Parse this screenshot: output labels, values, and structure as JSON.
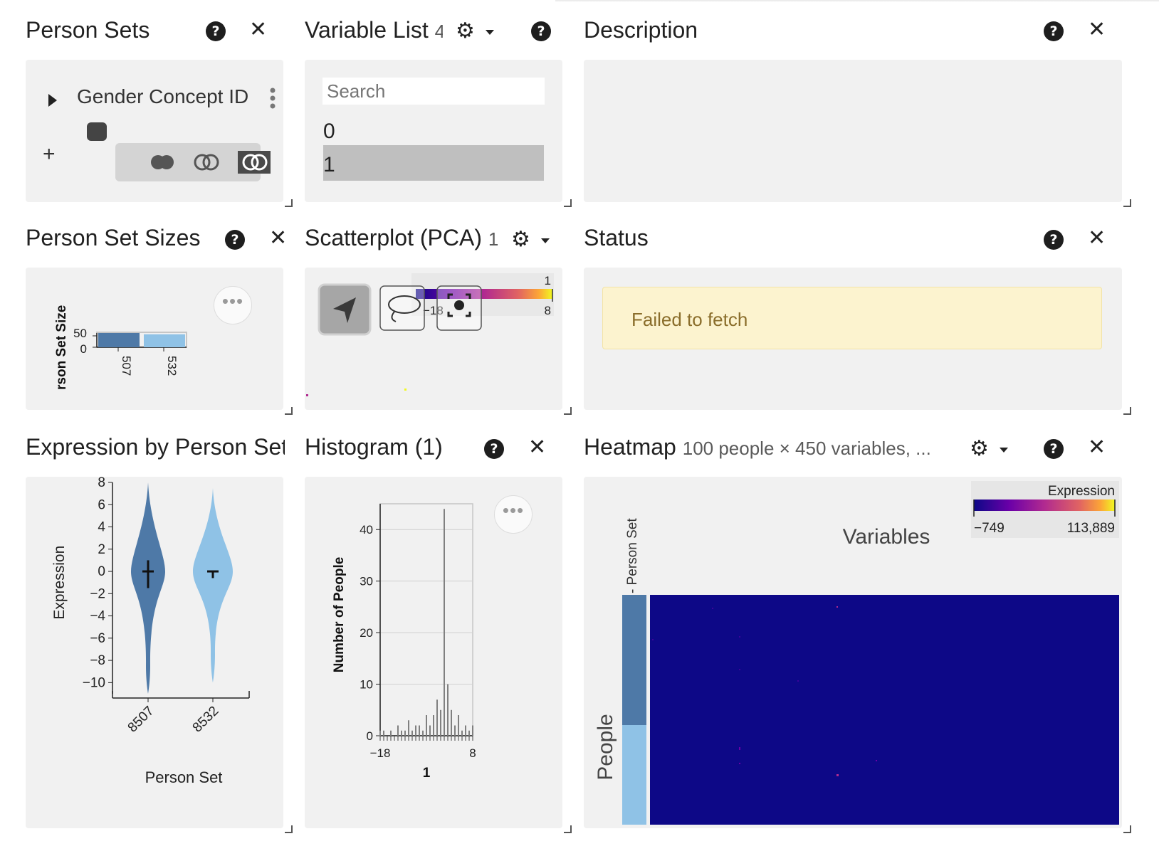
{
  "panels": {
    "person_sets": {
      "title": "Person Sets",
      "set_label": "Gender Concept ID",
      "add_symbol": "+"
    },
    "variable_list": {
      "title": "Variable List",
      "title_suffix": "4",
      "search_placeholder": "Search",
      "items": [
        {
          "label": "0",
          "selected": false
        },
        {
          "label": "1",
          "selected": true
        }
      ]
    },
    "description": {
      "title": "Description"
    },
    "person_set_sizes": {
      "title": "Person Set Sizes",
      "y_label": "rson Set Size",
      "y_ticks": [
        "50",
        "0"
      ],
      "x_ticks": [
        "507",
        "532"
      ]
    },
    "scatterplot": {
      "title": "Scatterplot (PCA)",
      "title_suffix": "1",
      "legend": {
        "title": "1",
        "min": "−18",
        "max": "8"
      }
    },
    "status": {
      "title": "Status",
      "message": "Failed to fetch"
    },
    "expression_by_person_set": {
      "title": "Expression by Person Set"
    },
    "histogram": {
      "title": "Histogram (1)"
    },
    "heatmap": {
      "title": "Heatmap",
      "subtitle": "100 people × 450 variables, ...",
      "legend": {
        "title": "Expression",
        "min": "−749",
        "max": "113,889"
      },
      "x_label": "Variables",
      "y_label": "People",
      "track_label": "- Person Set"
    }
  },
  "chart_data": [
    {
      "type": "bar",
      "chart_id": "person-set-sizes",
      "categories": [
        "507",
        "532"
      ],
      "values": [
        55,
        50
      ],
      "ylabel": "rson Set Size",
      "ylim": [
        0,
        55
      ],
      "colors": [
        "#4e79a7",
        "#8fc2e6"
      ]
    },
    {
      "type": "violin",
      "chart_id": "expression-by-person-set",
      "categories": [
        "8507",
        "8532"
      ],
      "xlabel": "Person Set",
      "ylabel": "Expression",
      "ylim": [
        -11,
        8
      ],
      "y_ticks": [
        8,
        6,
        4,
        2,
        0,
        -2,
        -4,
        -6,
        -8,
        -10
      ],
      "series": [
        {
          "name": "8507",
          "color": "#4e79a7",
          "min": -11,
          "max": 8,
          "q1": -1.5,
          "median": 0,
          "q3": 1
        },
        {
          "name": "8532",
          "color": "#8fc2e6",
          "min": -10,
          "max": 7.5,
          "q1": -0.6,
          "median": 0,
          "q3": 0
        }
      ]
    },
    {
      "type": "bar",
      "chart_id": "histogram",
      "xlabel": "1",
      "ylabel": "Number of People",
      "xlim": [
        -18,
        8
      ],
      "ylim": [
        0,
        45
      ],
      "y_ticks": [
        0,
        10,
        20,
        30,
        40
      ],
      "x_ticks": [
        -18,
        8
      ],
      "x": [
        -18,
        -17,
        -16,
        -15,
        -14,
        -13,
        -12,
        -11,
        -10,
        -9,
        -8,
        -7,
        -6,
        -5,
        -4,
        -3,
        -2,
        -1,
        0,
        1,
        2,
        3,
        4,
        5,
        6,
        7,
        8
      ],
      "values": [
        1,
        1,
        0,
        1,
        0,
        2,
        1,
        1,
        3,
        1,
        2,
        2,
        1,
        4,
        2,
        4,
        7,
        5,
        44,
        10,
        5,
        2,
        4,
        1,
        2,
        1,
        2
      ],
      "color": "#808080"
    },
    {
      "type": "heatmap",
      "chart_id": "heatmap",
      "xlabel": "Variables",
      "ylabel": "People",
      "color_scale": {
        "label": "Expression",
        "min": -749,
        "max": 113889
      },
      "base_color": "#0d0887"
    }
  ]
}
